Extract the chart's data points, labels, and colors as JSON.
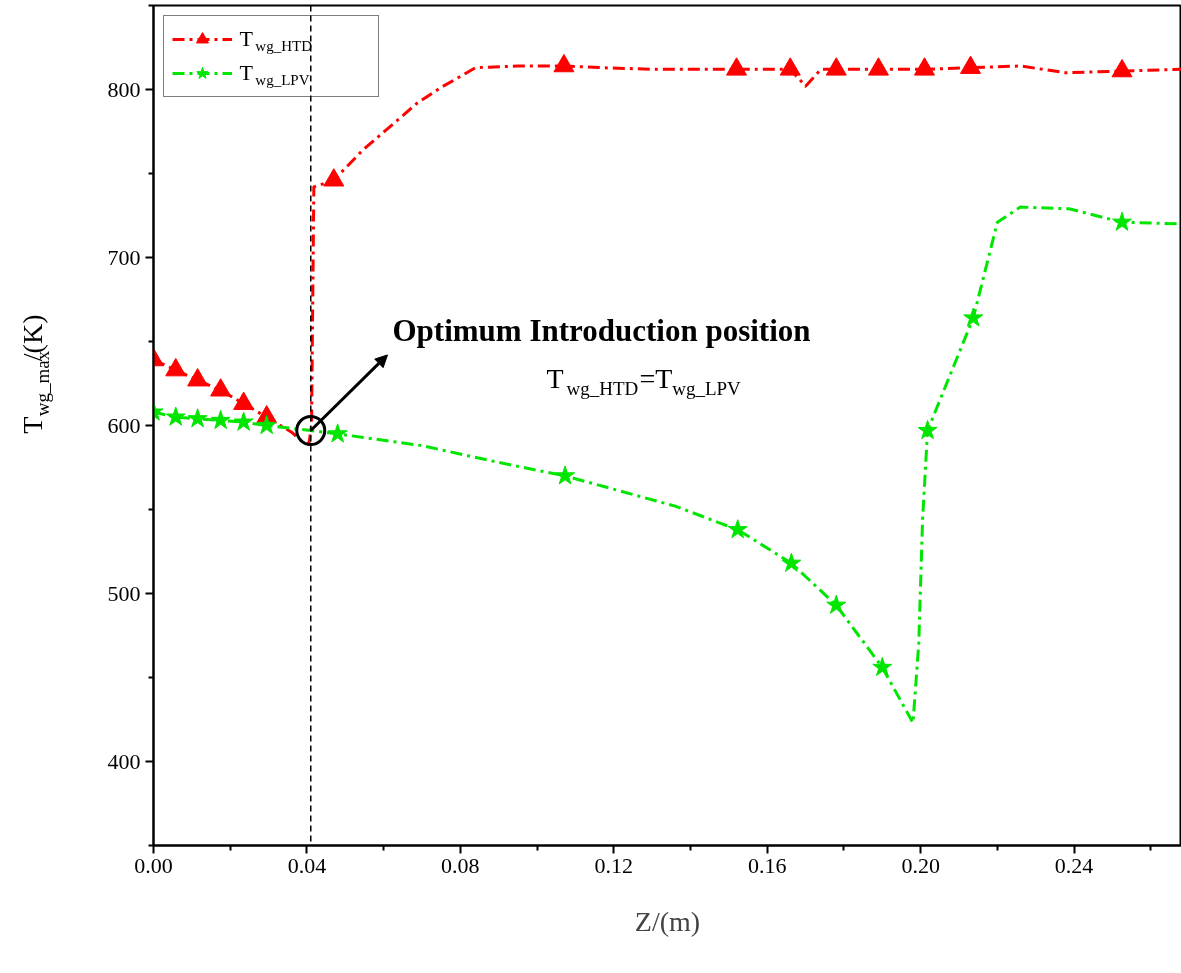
{
  "chart_data": {
    "type": "line",
    "xlabel": "Z/(m)",
    "ylabel": "T$_{wg_max}$/(K)",
    "xlim": [
      0,
      0.268
    ],
    "ylim": [
      350,
      850
    ],
    "xticks": [
      {
        "value": 0,
        "label": "0.00"
      },
      0.04,
      0.08,
      0.12,
      0.16,
      {
        "value": 0.2,
        "label": "0.20"
      },
      0.24
    ],
    "yticks": [
      400,
      500,
      600,
      700,
      800
    ],
    "legend": "top left",
    "line_style": "dashed",
    "series": [
      {
        "name": "T$_{wg_HTD}$",
        "color": "#ff0000",
        "marker": "none",
        "x": [
          0,
          0.0058,
          0.0115,
          0.0175,
          0.0235,
          0.0295,
          0.036,
          0.039,
          0.0405,
          0.0412,
          0.0418,
          0.047,
          0.0546,
          0.0688,
          0.0748,
          0.084,
          0.095,
          0.107,
          0.1166,
          0.13,
          0.145,
          0.152,
          0.166,
          0.17,
          0.174,
          0.178,
          0.189,
          0.201,
          0.213,
          0.226,
          0.2377,
          0.2525,
          0.268
        ],
        "values": [
          639,
          633,
          627,
          621,
          613,
          605,
          596,
          590,
          589,
          600,
          742,
          746,
          764,
          792,
          801,
          813,
          814,
          814,
          813,
          812,
          812,
          812,
          812,
          802,
          812,
          812,
          812,
          812,
          813,
          814,
          810,
          811,
          812
        ]
      },
      {
        "color": "#ff0000",
        "type": "scatter",
        "marker": "triangle",
        "x": [
          0,
          0.0058,
          0.0115,
          0.0175,
          0.0235,
          0.0295,
          0.047,
          0.107,
          0.152,
          0.166,
          0.178,
          0.189,
          0.201,
          0.213,
          0.2525
        ],
        "values": [
          639,
          633,
          627,
          621,
          613,
          605,
          746,
          814,
          812,
          812,
          812,
          812,
          812,
          813,
          811
        ]
      },
      {
        "name": "T$_{wg_LPV}$",
        "color": "#00e600",
        "marker": "none",
        "x": [
          0,
          0.0058,
          0.0115,
          0.0175,
          0.0235,
          0.0295,
          0.041,
          0.048,
          0.07,
          0.09,
          0.1073,
          0.136,
          0.1523,
          0.1663,
          0.178,
          0.19,
          0.198,
          0.1995,
          0.2005,
          0.2018,
          0.2137,
          0.22,
          0.226,
          0.2387,
          0.2525,
          0.268
        ],
        "values": [
          608,
          605,
          604,
          603,
          602,
          600,
          597,
          595,
          588,
          578,
          570,
          552,
          538,
          518,
          493,
          456,
          423,
          470,
          544,
          597,
          664,
          721,
          730,
          729,
          721,
          720
        ]
      },
      {
        "color": "#00e600",
        "type": "scatter",
        "marker": "star",
        "x": [
          0,
          0.0058,
          0.0115,
          0.0175,
          0.0235,
          0.0295,
          0.048,
          0.1073,
          0.1523,
          0.1663,
          0.178,
          0.19,
          0.2018,
          0.2137,
          0.2525
        ],
        "values": [
          608,
          605,
          604,
          603,
          602,
          600,
          595,
          570,
          538,
          518,
          493,
          456,
          597,
          664,
          721
        ]
      }
    ],
    "ref_lines": [
      {
        "axis": "x",
        "value": 0.041,
        "color": "#000000",
        "line_style": "dashed"
      }
    ],
    "annotations": [
      {
        "text": "Optimum Introduction position",
        "x": 0.041,
        "y": 597
      },
      "T$_{wg_HTD}$=T$_{wg_LPV}$"
    ]
  }
}
